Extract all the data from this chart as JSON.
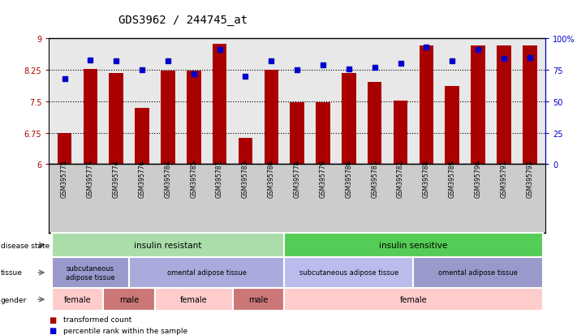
{
  "title": "GDS3962 / 244745_at",
  "samples": [
    "GSM395775",
    "GSM395777",
    "GSM395774",
    "GSM395776",
    "GSM395784",
    "GSM395785",
    "GSM395787",
    "GSM395783",
    "GSM395786",
    "GSM395778",
    "GSM395779",
    "GSM395780",
    "GSM395781",
    "GSM395782",
    "GSM395788",
    "GSM395789",
    "GSM395790",
    "GSM395791",
    "GSM395792"
  ],
  "bar_values": [
    6.75,
    8.28,
    8.17,
    7.35,
    8.24,
    8.24,
    8.87,
    6.62,
    8.25,
    7.48,
    7.48,
    8.17,
    7.97,
    7.52,
    8.83,
    7.86,
    8.84,
    8.84,
    8.84
  ],
  "percentile_values": [
    68,
    83,
    82,
    75,
    82,
    72,
    91,
    70,
    82,
    75,
    79,
    76,
    77,
    80,
    93,
    82,
    91,
    84,
    85
  ],
  "ylim_left": [
    6,
    9
  ],
  "ylim_right": [
    0,
    100
  ],
  "yticks_left": [
    6,
    6.75,
    7.5,
    8.25,
    9
  ],
  "yticks_right": [
    0,
    25,
    50,
    75,
    100
  ],
  "bar_color": "#aa0000",
  "dot_color": "#0000cc",
  "background_color": "#ffffff",
  "plot_bg": "#e8e8e8",
  "disease_state_groups": [
    {
      "label": "insulin resistant",
      "start": 0,
      "end": 8,
      "color": "#aaddaa"
    },
    {
      "label": "insulin sensitive",
      "start": 9,
      "end": 18,
      "color": "#55cc55"
    }
  ],
  "tissue_groups": [
    {
      "label": "subcutaneous\nadipose tissue",
      "start": 0,
      "end": 2,
      "color": "#9999cc"
    },
    {
      "label": "omental adipose tissue",
      "start": 3,
      "end": 8,
      "color": "#aaaadd"
    },
    {
      "label": "subcutaneous adipose tissue",
      "start": 9,
      "end": 13,
      "color": "#bbbbee"
    },
    {
      "label": "omental adipose tissue",
      "start": 14,
      "end": 18,
      "color": "#9999cc"
    }
  ],
  "gender_groups": [
    {
      "label": "female",
      "start": 0,
      "end": 1,
      "color": "#ffcccc"
    },
    {
      "label": "male",
      "start": 2,
      "end": 3,
      "color": "#cc7777"
    },
    {
      "label": "female",
      "start": 4,
      "end": 6,
      "color": "#ffcccc"
    },
    {
      "label": "male",
      "start": 7,
      "end": 8,
      "color": "#cc7777"
    },
    {
      "label": "female",
      "start": 9,
      "end": 18,
      "color": "#ffcccc"
    }
  ],
  "row_labels": [
    "disease state",
    "tissue",
    "gender"
  ],
  "legend_items": [
    {
      "label": "transformed count",
      "color": "#aa0000"
    },
    {
      "label": "percentile rank within the sample",
      "color": "#0000cc"
    }
  ]
}
